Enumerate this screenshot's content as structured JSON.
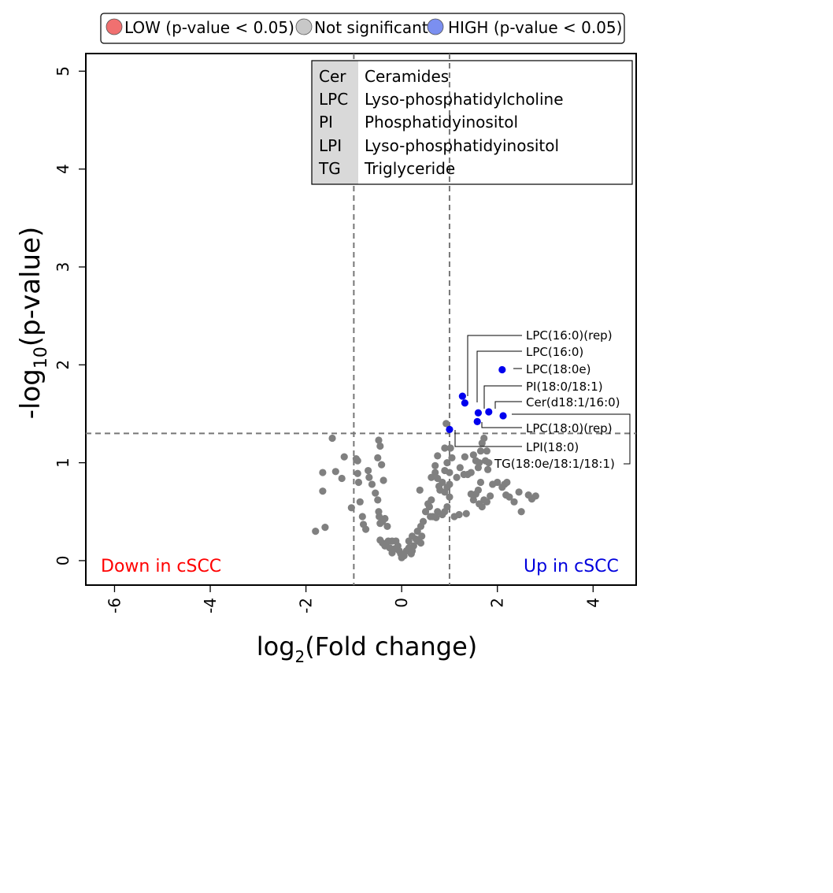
{
  "chart_data": {
    "type": "scatter",
    "title": "",
    "xlabel": {
      "main": "log",
      "sub": "2",
      "rest": "(Fold change)"
    },
    "ylabel": {
      "main": "-log",
      "sub": "10",
      "rest": "(p-value)"
    },
    "xlim": [
      -6.6,
      4.9
    ],
    "ylim": [
      -0.25,
      5.18
    ],
    "xticks": [
      -6,
      -4,
      -2,
      0,
      2,
      4
    ],
    "yticks": [
      0,
      1,
      2,
      3,
      4,
      5
    ],
    "grid": false,
    "thresholds": {
      "x": [
        -1,
        1
      ],
      "y": 1.3
    },
    "legend": {
      "placement": "top",
      "items": [
        {
          "label": "LOW (p-value  < 0.05)",
          "color": "#f07070"
        },
        {
          "label": "Not significant",
          "color": "#c8c8c8"
        },
        {
          "label": "HIGH (p-value  < 0.05)",
          "color": "#7b8ff0"
        }
      ]
    },
    "abbreviations": [
      {
        "abbr": "Cer",
        "name": "Ceramides"
      },
      {
        "abbr": "LPC",
        "name": "Lyso-phosphatidylcholine"
      },
      {
        "abbr": "PI",
        "name": "Phosphatidyinositol"
      },
      {
        "abbr": "LPI",
        "name": "Lyso-phosphatidyinositol"
      },
      {
        "abbr": "TG",
        "name": "Triglyceride"
      }
    ],
    "annotations": {
      "down": {
        "text": "Down in cSCC",
        "color": "#ff0000"
      },
      "up": {
        "text": "Up in cSCC",
        "color": "#0000dd"
      }
    },
    "series": [
      {
        "name": "HIGH (p-value  < 0.05)",
        "color": "#0000ee",
        "points": [
          {
            "x": 2.1,
            "y": 1.95,
            "label": "LPC(18:0e)"
          },
          {
            "x": 1.27,
            "y": 1.68,
            "label": "LPC(16:0)(rep)"
          },
          {
            "x": 1.32,
            "y": 1.61,
            "label": "LPC(16:0)"
          },
          {
            "x": 1.82,
            "y": 1.52,
            "label": "Cer(d18:1/16:0)"
          },
          {
            "x": 1.6,
            "y": 1.51,
            "label": "PI(18:0/18:1)"
          },
          {
            "x": 2.12,
            "y": 1.48,
            "label": "TG(18:0e/18:1/18:1)"
          },
          {
            "x": 1.58,
            "y": 1.42,
            "label": "LPC(18:0)(rep)"
          },
          {
            "x": 1.0,
            "y": 1.34,
            "label": "LPI(18:0)"
          }
        ]
      },
      {
        "name": "Not significant",
        "color": "#808080",
        "points": [
          [
            -1.8,
            0.3
          ],
          [
            -1.6,
            0.34
          ],
          [
            -1.65,
            0.9
          ],
          [
            -1.65,
            0.71
          ],
          [
            -1.45,
            1.25
          ],
          [
            -1.38,
            0.91
          ],
          [
            -1.2,
            1.06
          ],
          [
            -1.25,
            0.84
          ],
          [
            -1.05,
            0.54
          ],
          [
            -0.95,
            1.04
          ],
          [
            -0.92,
            1.02
          ],
          [
            -0.92,
            0.89
          ],
          [
            -0.9,
            0.8
          ],
          [
            -0.87,
            0.6
          ],
          [
            -0.82,
            0.45
          ],
          [
            -0.8,
            0.37
          ],
          [
            -0.75,
            0.32
          ],
          [
            -0.7,
            0.92
          ],
          [
            -0.68,
            0.85
          ],
          [
            -0.62,
            0.78
          ],
          [
            -0.55,
            0.69
          ],
          [
            -0.5,
            0.62
          ],
          [
            -0.48,
            0.5
          ],
          [
            -0.47,
            0.45
          ],
          [
            -0.45,
            0.38
          ],
          [
            -0.48,
            1.23
          ],
          [
            -0.45,
            1.17
          ],
          [
            -0.5,
            1.05
          ],
          [
            -0.42,
            0.98
          ],
          [
            -0.38,
            0.82
          ],
          [
            -0.4,
            0.4
          ],
          [
            -0.35,
            0.43
          ],
          [
            -0.3,
            0.35
          ],
          [
            -0.45,
            0.21
          ],
          [
            -0.4,
            0.18
          ],
          [
            -0.35,
            0.15
          ],
          [
            -0.28,
            0.2
          ],
          [
            -0.2,
            0.2
          ],
          [
            -0.15,
            0.12
          ],
          [
            -0.12,
            0.2
          ],
          [
            -0.08,
            0.15
          ],
          [
            -0.05,
            0.1
          ],
          [
            -0.02,
            0.07
          ],
          [
            0.0,
            0.03
          ],
          [
            0.05,
            0.05
          ],
          [
            0.1,
            0.1
          ],
          [
            0.15,
            0.13
          ],
          [
            0.2,
            0.07
          ],
          [
            0.25,
            0.15
          ],
          [
            0.3,
            0.22
          ],
          [
            0.35,
            0.2
          ],
          [
            0.4,
            0.18
          ],
          [
            -0.25,
            0.13
          ],
          [
            -0.2,
            0.08
          ],
          [
            0.22,
            0.1
          ],
          [
            0.15,
            0.2
          ],
          [
            0.22,
            0.25
          ],
          [
            0.33,
            0.3
          ],
          [
            0.4,
            0.35
          ],
          [
            0.42,
            0.25
          ],
          [
            0.45,
            0.4
          ],
          [
            0.5,
            0.5
          ],
          [
            0.55,
            0.58
          ],
          [
            0.6,
            0.45
          ],
          [
            0.65,
            0.45
          ],
          [
            0.72,
            0.44
          ],
          [
            0.75,
            0.5
          ],
          [
            0.85,
            0.47
          ],
          [
            0.9,
            0.5
          ],
          [
            0.95,
            0.55
          ],
          [
            1.0,
            0.65
          ],
          [
            0.9,
            0.7
          ],
          [
            0.8,
            0.72
          ],
          [
            0.85,
            0.8
          ],
          [
            0.7,
            0.9
          ],
          [
            0.75,
            0.84
          ],
          [
            0.78,
            0.76
          ],
          [
            0.62,
            0.62
          ],
          [
            0.58,
            0.55
          ],
          [
            0.38,
            0.72
          ],
          [
            0.95,
            0.75
          ],
          [
            1.0,
            0.78
          ],
          [
            0.9,
            0.92
          ],
          [
            0.95,
            1.0
          ],
          [
            1.0,
            0.9
          ],
          [
            0.9,
            1.15
          ],
          [
            0.93,
            1.4
          ],
          [
            0.75,
            1.07
          ],
          [
            0.62,
            0.85
          ],
          [
            0.7,
            0.97
          ],
          [
            1.05,
            1.05
          ],
          [
            1.02,
            1.15
          ],
          [
            1.1,
            0.45
          ],
          [
            1.2,
            0.47
          ],
          [
            1.15,
            0.85
          ],
          [
            1.22,
            0.95
          ],
          [
            1.3,
            0.88
          ],
          [
            1.32,
            1.06
          ],
          [
            1.38,
            0.88
          ],
          [
            1.45,
            0.9
          ],
          [
            1.5,
            1.08
          ],
          [
            1.55,
            1.02
          ],
          [
            1.6,
            0.95
          ],
          [
            1.62,
            1.0
          ],
          [
            1.65,
            1.12
          ],
          [
            1.68,
            1.2
          ],
          [
            1.72,
            1.25
          ],
          [
            1.75,
            1.02
          ],
          [
            1.78,
            1.12
          ],
          [
            1.8,
            0.93
          ],
          [
            1.82,
            1.0
          ],
          [
            1.45,
            0.68
          ],
          [
            1.5,
            0.62
          ],
          [
            1.55,
            0.68
          ],
          [
            1.6,
            0.72
          ],
          [
            1.65,
            0.8
          ],
          [
            1.62,
            0.58
          ],
          [
            1.68,
            0.55
          ],
          [
            1.72,
            0.62
          ],
          [
            1.78,
            0.6
          ],
          [
            1.85,
            0.66
          ],
          [
            1.9,
            0.78
          ],
          [
            2.0,
            0.8
          ],
          [
            2.1,
            0.75
          ],
          [
            2.15,
            0.78
          ],
          [
            2.2,
            0.8
          ],
          [
            2.18,
            0.67
          ],
          [
            2.25,
            0.65
          ],
          [
            2.35,
            0.6
          ],
          [
            2.45,
            0.7
          ],
          [
            2.5,
            0.5
          ],
          [
            2.65,
            0.67
          ],
          [
            2.72,
            0.63
          ],
          [
            2.8,
            0.66
          ],
          [
            1.35,
            0.48
          ]
        ]
      }
    ],
    "callouts": [
      {
        "text": "LPC(16:0)(rep)"
      },
      {
        "text": "LPC(16:0)"
      },
      {
        "text": "LPC(18:0e)"
      },
      {
        "text": "PI(18:0/18:1)"
      },
      {
        "text": "Cer(d18:1/16:0)"
      },
      {
        "text": "LPC(18:0)(rep)"
      },
      {
        "text": "LPI(18:0)"
      },
      {
        "text": "TG(18:0e/18:1/18:1)"
      }
    ]
  }
}
